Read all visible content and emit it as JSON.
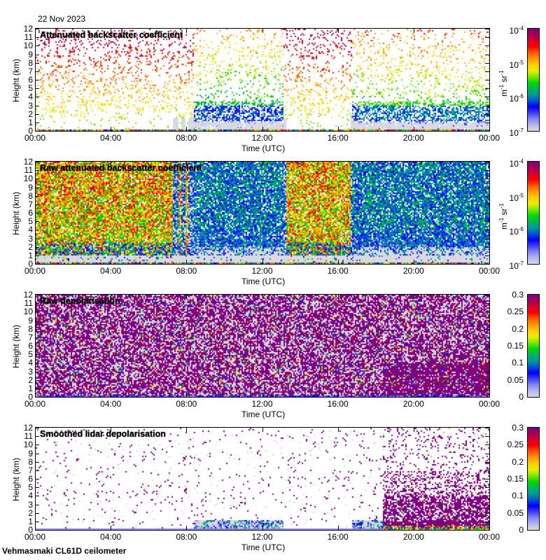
{
  "header": {
    "date": "22 Nov 2023"
  },
  "footer": {
    "station": "Vehmasmaki CL61D ceilometer"
  },
  "colors": {
    "colormap": [
      "#d9d9e3",
      "#b4b6ef",
      "#8486f2",
      "#3b3ff5",
      "#0000ff",
      "#0055d0",
      "#009a9a",
      "#00b45a",
      "#00d800",
      "#7de600",
      "#e5ef00",
      "#ffcc00",
      "#ff9a00",
      "#ff5a00",
      "#ff0000",
      "#d8002c",
      "#a0005a",
      "#800080"
    ]
  },
  "chart_data": [
    {
      "type": "heatmap",
      "title": "Attenuated backscatter coefficient",
      "xlabel": "Time (UTC)",
      "ylabel": "Height (km)",
      "x_ticks": [
        "00:00",
        "04:00",
        "08:00",
        "12:00",
        "16:00",
        "20:00",
        "00:00"
      ],
      "y_ticks": [
        "0",
        "1",
        "2",
        "3",
        "4",
        "5",
        "6",
        "7",
        "8",
        "9",
        "10",
        "11",
        "12"
      ],
      "xlim_hours": [
        0,
        24
      ],
      "ylim_km": [
        0,
        12
      ],
      "colorbar": {
        "scale": "log",
        "range": [
          1e-07,
          0.0001
        ],
        "tick_bases": [
          "10",
          "10",
          "10",
          "10"
        ],
        "tick_exps": [
          "-7",
          "-6",
          "-5",
          "-4"
        ],
        "unit_base": [
          "m",
          "sr"
        ],
        "unit_exp": [
          "-1",
          "-1"
        ]
      },
      "pattern": "sparse"
    },
    {
      "type": "heatmap",
      "title": "Raw attenuated backscatter coefficient",
      "xlabel": "Time (UTC)",
      "ylabel": "Height (km)",
      "x_ticks": [
        "00:00",
        "04:00",
        "08:00",
        "12:00",
        "16:00",
        "20:00",
        "00:00"
      ],
      "y_ticks": [
        "0",
        "1",
        "2",
        "3",
        "4",
        "5",
        "6",
        "7",
        "8",
        "9",
        "10",
        "11",
        "12"
      ],
      "xlim_hours": [
        0,
        24
      ],
      "ylim_km": [
        0,
        12
      ],
      "colorbar": {
        "scale": "log",
        "range": [
          1e-07,
          0.0001
        ],
        "tick_bases": [
          "10",
          "10",
          "10",
          "10"
        ],
        "tick_exps": [
          "-7",
          "-6",
          "-5",
          "-4"
        ],
        "unit_base": [
          "m",
          "sr"
        ],
        "unit_exp": [
          "-1",
          "-1"
        ]
      },
      "pattern": "dense"
    },
    {
      "type": "heatmap",
      "title": "Raw depolarisation",
      "xlabel": "Time (UTC)",
      "ylabel": "Height (km)",
      "x_ticks": [
        "00:00",
        "04:00",
        "08:00",
        "12:00",
        "16:00",
        "20:00",
        "00:00"
      ],
      "y_ticks": [
        "0",
        "1",
        "2",
        "3",
        "4",
        "5",
        "6",
        "7",
        "8",
        "9",
        "10",
        "11",
        "12"
      ],
      "xlim_hours": [
        0,
        24
      ],
      "ylim_km": [
        0,
        12
      ],
      "colorbar": {
        "scale": "linear",
        "range": [
          0,
          0.3
        ],
        "ticks": [
          "0",
          "0.05",
          "0.1",
          "0.15",
          "0.2",
          "0.25",
          "0.3"
        ]
      },
      "pattern": "depol-raw"
    },
    {
      "type": "heatmap",
      "title": "Smoothed lidar depolarisation",
      "xlabel": "Time (UTC)",
      "ylabel": "Height (km)",
      "x_ticks": [
        "00:00",
        "04:00",
        "08:00",
        "12:00",
        "16:00",
        "20:00",
        "00:00"
      ],
      "y_ticks": [
        "0",
        "1",
        "2",
        "3",
        "4",
        "5",
        "6",
        "7",
        "8",
        "9",
        "10",
        "11",
        "12"
      ],
      "xlim_hours": [
        0,
        24
      ],
      "ylim_km": [
        0,
        12
      ],
      "colorbar": {
        "scale": "linear",
        "range": [
          0,
          0.3
        ],
        "ticks": [
          "0",
          "0.05",
          "0.1",
          "0.15",
          "0.2",
          "0.25",
          "0.3"
        ]
      },
      "pattern": "depol-smooth"
    }
  ]
}
